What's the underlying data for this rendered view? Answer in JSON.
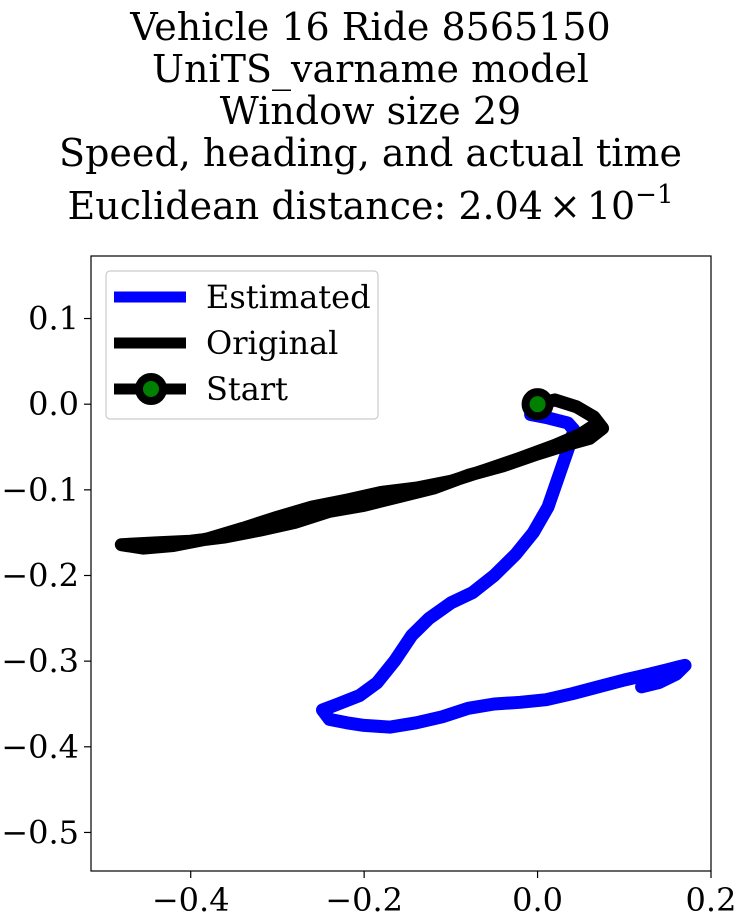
{
  "title_lines": [
    "Vehicle 16 Ride 8565150",
    "UniTS_varname model",
    "Window size 29",
    "Speed, heading, and actual time"
  ],
  "distance_label": {
    "prefix": "Euclidean distance: 2.04",
    "times": "×",
    "base": "10",
    "exponent": "−1"
  },
  "chart_data": {
    "type": "line",
    "title": "Vehicle 16 Ride 8565150\nUniTS_varname model\nWindow size 29\nSpeed, heading, and actual time\nEuclidean distance: 2.04×10^-1",
    "xlabel": "",
    "ylabel": "",
    "xlim": [
      -0.515,
      0.2
    ],
    "ylim": [
      -0.545,
      0.173
    ],
    "x_ticks": [
      -0.4,
      -0.2,
      0.0,
      0.2
    ],
    "x_tick_labels": [
      "−0.4",
      "−0.2",
      "0.0",
      "0.2"
    ],
    "y_ticks": [
      0.1,
      0.0,
      -0.1,
      -0.2,
      -0.3,
      -0.4,
      -0.5
    ],
    "y_tick_labels": [
      "0.1",
      "0.0",
      "−0.1",
      "−0.2",
      "−0.3",
      "−0.4",
      "−0.5"
    ],
    "grid": false,
    "legend_position": "top-left",
    "series": [
      {
        "name": "Estimated",
        "color": "#0000ff",
        "points": [
          [
            0.0,
            0.0
          ],
          [
            -0.008,
            -0.012
          ],
          [
            0.012,
            -0.016
          ],
          [
            0.035,
            -0.022
          ],
          [
            0.042,
            -0.03
          ],
          [
            0.036,
            -0.05
          ],
          [
            0.024,
            -0.085
          ],
          [
            0.012,
            -0.12
          ],
          [
            -0.005,
            -0.15
          ],
          [
            -0.025,
            -0.175
          ],
          [
            -0.05,
            -0.2
          ],
          [
            -0.075,
            -0.22
          ],
          [
            -0.1,
            -0.232
          ],
          [
            -0.125,
            -0.25
          ],
          [
            -0.145,
            -0.27
          ],
          [
            -0.165,
            -0.3
          ],
          [
            -0.185,
            -0.325
          ],
          [
            -0.205,
            -0.34
          ],
          [
            -0.23,
            -0.35
          ],
          [
            -0.248,
            -0.357
          ],
          [
            -0.24,
            -0.368
          ],
          [
            -0.22,
            -0.372
          ],
          [
            -0.2,
            -0.375
          ],
          [
            -0.17,
            -0.377
          ],
          [
            -0.14,
            -0.372
          ],
          [
            -0.11,
            -0.365
          ],
          [
            -0.08,
            -0.355
          ],
          [
            -0.05,
            -0.35
          ],
          [
            -0.02,
            -0.348
          ],
          [
            0.01,
            -0.345
          ],
          [
            0.04,
            -0.338
          ],
          [
            0.07,
            -0.33
          ],
          [
            0.1,
            -0.322
          ],
          [
            0.13,
            -0.315
          ],
          [
            0.15,
            -0.31
          ],
          [
            0.165,
            -0.306
          ],
          [
            0.17,
            -0.305
          ],
          [
            0.16,
            -0.315
          ],
          [
            0.14,
            -0.325
          ],
          [
            0.12,
            -0.33
          ],
          [
            0.125,
            -0.322
          ],
          [
            0.14,
            -0.318
          ],
          [
            0.16,
            -0.312
          ]
        ]
      },
      {
        "name": "Original",
        "color": "#000000",
        "points": [
          [
            0.0,
            0.0
          ],
          [
            0.02,
            0.005
          ],
          [
            0.045,
            -0.003
          ],
          [
            0.065,
            -0.015
          ],
          [
            0.075,
            -0.028
          ],
          [
            0.06,
            -0.04
          ],
          [
            0.035,
            -0.047
          ],
          [
            0.0,
            -0.058
          ],
          [
            -0.04,
            -0.072
          ],
          [
            -0.08,
            -0.083
          ],
          [
            -0.12,
            -0.098
          ],
          [
            -0.16,
            -0.108
          ],
          [
            -0.2,
            -0.118
          ],
          [
            -0.24,
            -0.125
          ],
          [
            -0.28,
            -0.138
          ],
          [
            -0.32,
            -0.147
          ],
          [
            -0.36,
            -0.155
          ],
          [
            -0.4,
            -0.16
          ],
          [
            -0.44,
            -0.162
          ],
          [
            -0.48,
            -0.164
          ],
          [
            -0.455,
            -0.168
          ],
          [
            -0.42,
            -0.165
          ],
          [
            -0.38,
            -0.157
          ],
          [
            -0.34,
            -0.145
          ],
          [
            -0.3,
            -0.132
          ],
          [
            -0.26,
            -0.12
          ],
          [
            -0.22,
            -0.112
          ],
          [
            -0.18,
            -0.103
          ],
          [
            -0.14,
            -0.098
          ],
          [
            -0.1,
            -0.09
          ],
          [
            -0.06,
            -0.077
          ],
          [
            -0.02,
            -0.063
          ],
          [
            0.02,
            -0.048
          ],
          [
            0.05,
            -0.035
          ],
          [
            0.065,
            -0.025
          ]
        ]
      }
    ],
    "start": {
      "name": "Start",
      "x": 0.0,
      "y": 0.0,
      "marker_color": "#008000",
      "edge_color": "#000000"
    }
  }
}
